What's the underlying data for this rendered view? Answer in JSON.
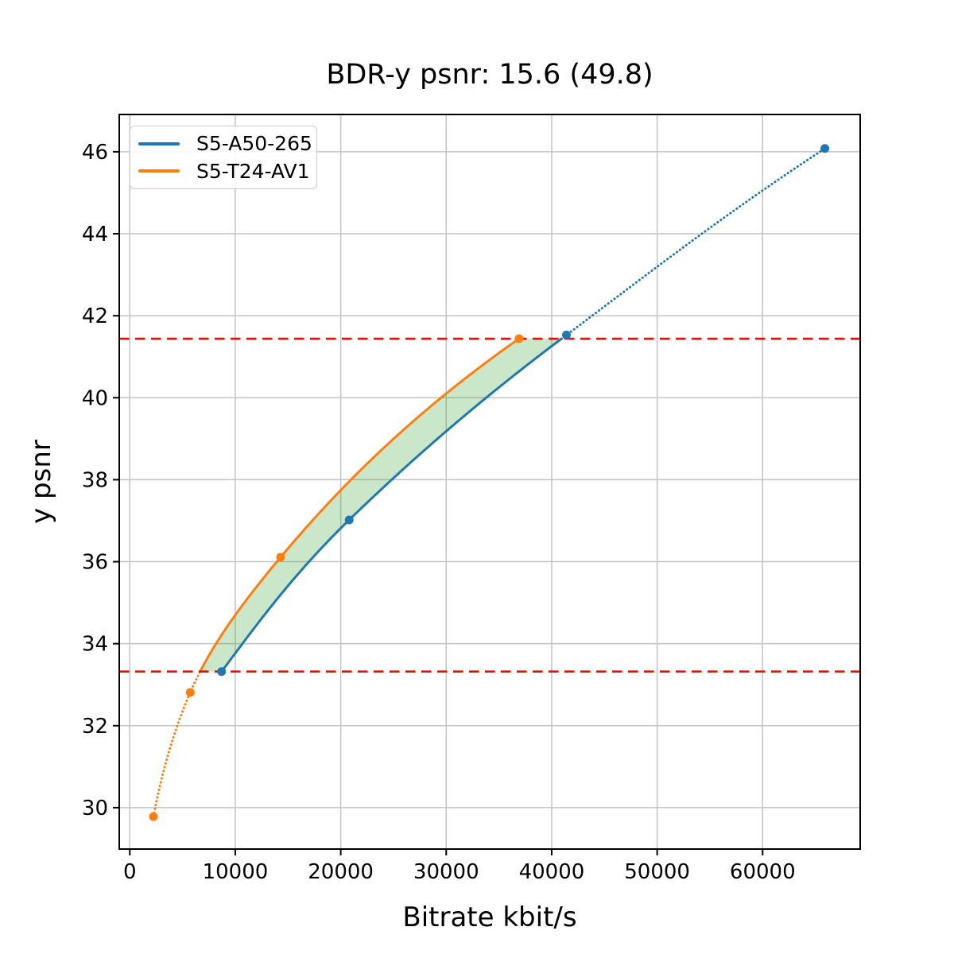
{
  "chart_data": {
    "type": "line",
    "title": "BDR-y psnr: 15.6 (49.8)",
    "xlabel": "Bitrate kbit/s",
    "ylabel": "y psnr",
    "xlim": [
      -1000,
      69250
    ],
    "ylim": [
      28.99,
      46.91
    ],
    "xticks": [
      0,
      10000,
      20000,
      30000,
      40000,
      50000,
      60000
    ],
    "yticks": [
      30,
      32,
      34,
      36,
      38,
      40,
      42,
      44,
      46
    ],
    "grid": true,
    "grid_color": "#c3c3c3",
    "axis_color": "#000000",
    "legend_position": "upper left",
    "series": [
      {
        "name": "S5-A50-265",
        "color": "#1f77b4",
        "marker": "circle",
        "x": [
          8700,
          20800,
          41400,
          65900
        ],
        "y": [
          33.32,
          37.02,
          41.53,
          46.08
        ]
      },
      {
        "name": "S5-T24-AV1",
        "color": "#ff7f0e",
        "marker": "circle",
        "x": [
          2240,
          5730,
          14300,
          36900
        ],
        "y": [
          29.78,
          32.81,
          36.11,
          41.44
        ]
      }
    ],
    "overlap_interval": [
      33.32,
      41.44
    ],
    "reference_lines": [
      {
        "y": 33.32,
        "color": "#ff0000",
        "style": "dashed"
      },
      {
        "y": 41.44,
        "color": "#ff0000",
        "style": "dashed"
      }
    ],
    "shaded_region": {
      "between": [
        "S5-T24-AV1",
        "S5-A50-265"
      ],
      "y_range": [
        33.32,
        41.44
      ],
      "color": "#2ca02c",
      "opacity": 0.25
    },
    "line_style_note": "solid inside overlap interval, dotted outside"
  }
}
